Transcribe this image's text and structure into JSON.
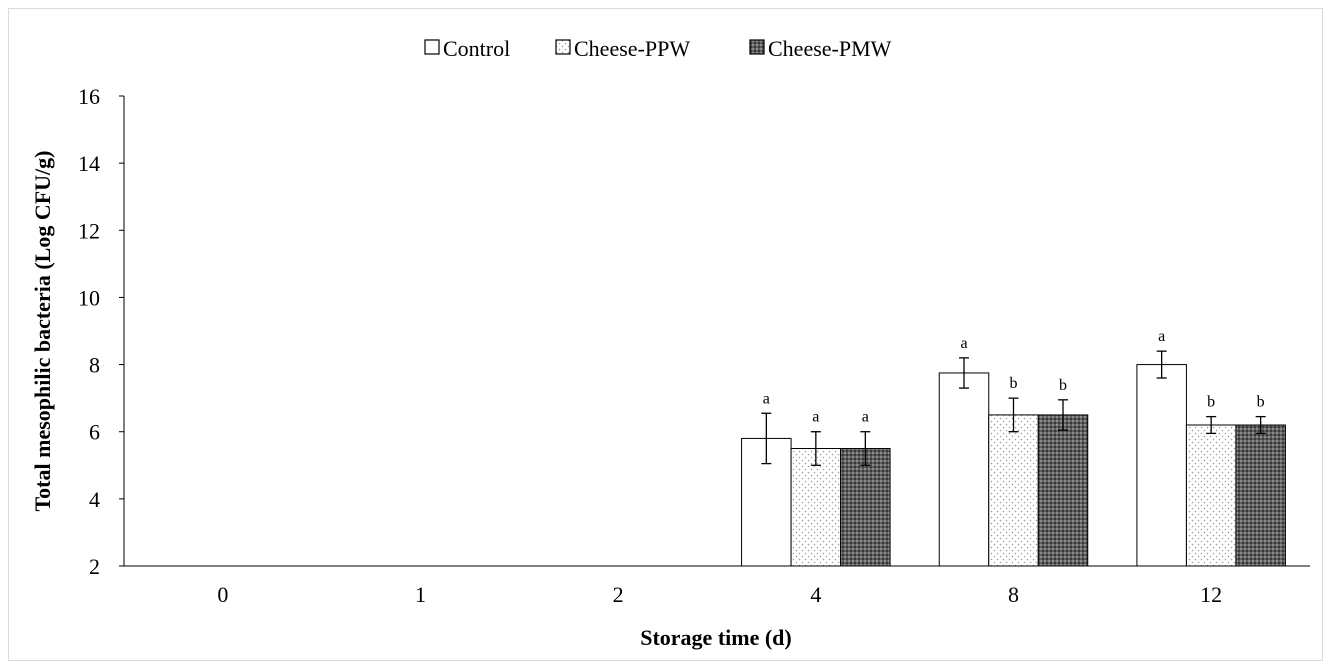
{
  "chart_data": {
    "type": "bar",
    "xlabel": "Storage time (d)",
    "ylabel": "Total mesophilic bacteria (Log CFU/g)",
    "ylim": [
      2,
      16
    ],
    "yticks": [
      "2",
      "4",
      "6",
      "8",
      "10",
      "12",
      "14",
      "16"
    ],
    "categories": [
      "0",
      "1",
      "2",
      "4",
      "8",
      "12"
    ],
    "legend_position": "top-center",
    "grid": false,
    "series": [
      {
        "name": "Control",
        "pattern": "solid-white",
        "values": [
          null,
          null,
          null,
          5.8,
          7.75,
          8.0
        ],
        "errors": [
          null,
          null,
          null,
          0.75,
          0.45,
          0.4
        ],
        "letters": [
          "",
          "",
          "",
          "a",
          "a",
          "a"
        ]
      },
      {
        "name": "Cheese-PPW",
        "pattern": "white-dotted",
        "values": [
          null,
          null,
          null,
          5.5,
          6.5,
          6.2
        ],
        "errors": [
          null,
          null,
          null,
          0.5,
          0.5,
          0.25
        ],
        "letters": [
          "",
          "",
          "",
          "a",
          "b",
          "b"
        ]
      },
      {
        "name": "Cheese-PMW",
        "pattern": "dark-hatched",
        "values": [
          null,
          null,
          null,
          5.5,
          6.5,
          6.2
        ],
        "errors": [
          null,
          null,
          null,
          0.5,
          0.45,
          0.25
        ],
        "letters": [
          "",
          "",
          "",
          "a",
          "b",
          "b"
        ]
      }
    ]
  }
}
